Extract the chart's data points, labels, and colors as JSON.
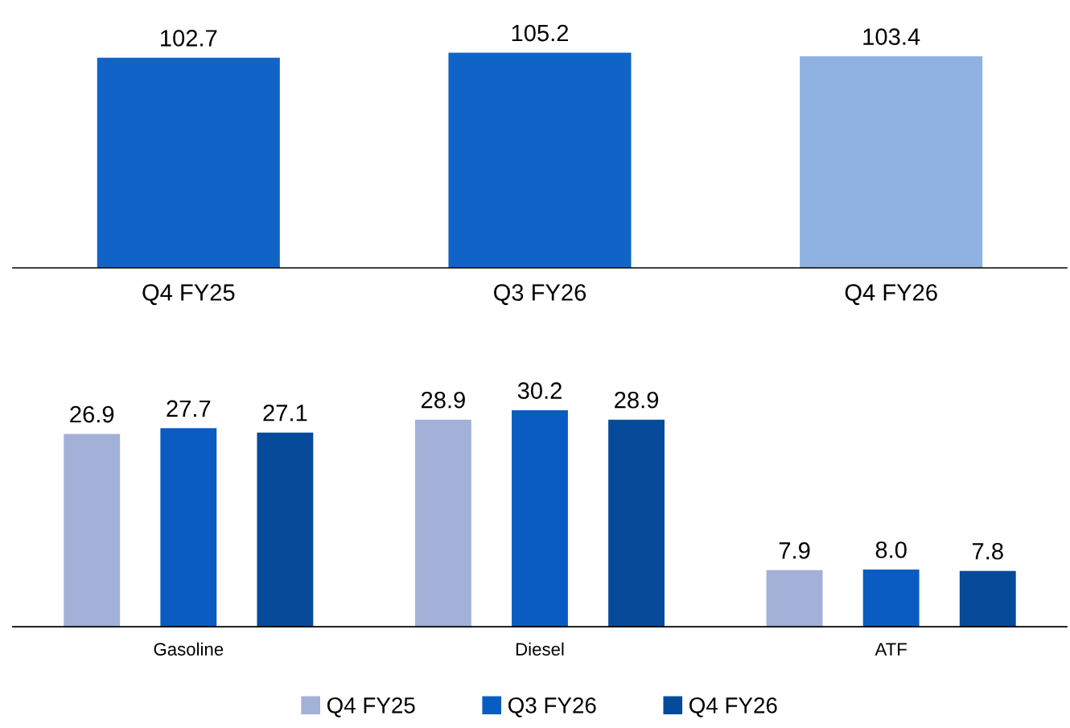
{
  "chart_data": [
    {
      "type": "bar",
      "categories": [
        "Q4 FY25",
        "Q3 FY26",
        "Q4 FY26"
      ],
      "values": [
        102.7,
        105.2,
        103.4
      ],
      "colors": [
        "#1064c8",
        "#1064c8",
        "#8fb2e2"
      ],
      "data_labels": true,
      "tick_labels": "x",
      "grid": false,
      "legend": false
    },
    {
      "type": "bar",
      "categories": [
        "Gasoline",
        "Diesel",
        "ATF"
      ],
      "series": [
        {
          "name": "Q4 FY25",
          "color": "#a3b0d8",
          "values": [
            26.9,
            28.9,
            7.9
          ],
          "value_labels": [
            "26.9",
            "28.9",
            "7.9"
          ]
        },
        {
          "name": "Q3 FY26",
          "color": "#0a5cc2",
          "values": [
            27.7,
            30.2,
            8.0
          ],
          "value_labels": [
            "27.7",
            "30.2",
            "8.0"
          ]
        },
        {
          "name": "Q4 FY26",
          "color": "#064a9a",
          "values": [
            27.1,
            28.9,
            7.8
          ],
          "value_labels": [
            "27.1",
            "28.9",
            "7.8"
          ]
        }
      ],
      "tick_labels": "x",
      "grid": false,
      "legend": "bottom"
    }
  ]
}
